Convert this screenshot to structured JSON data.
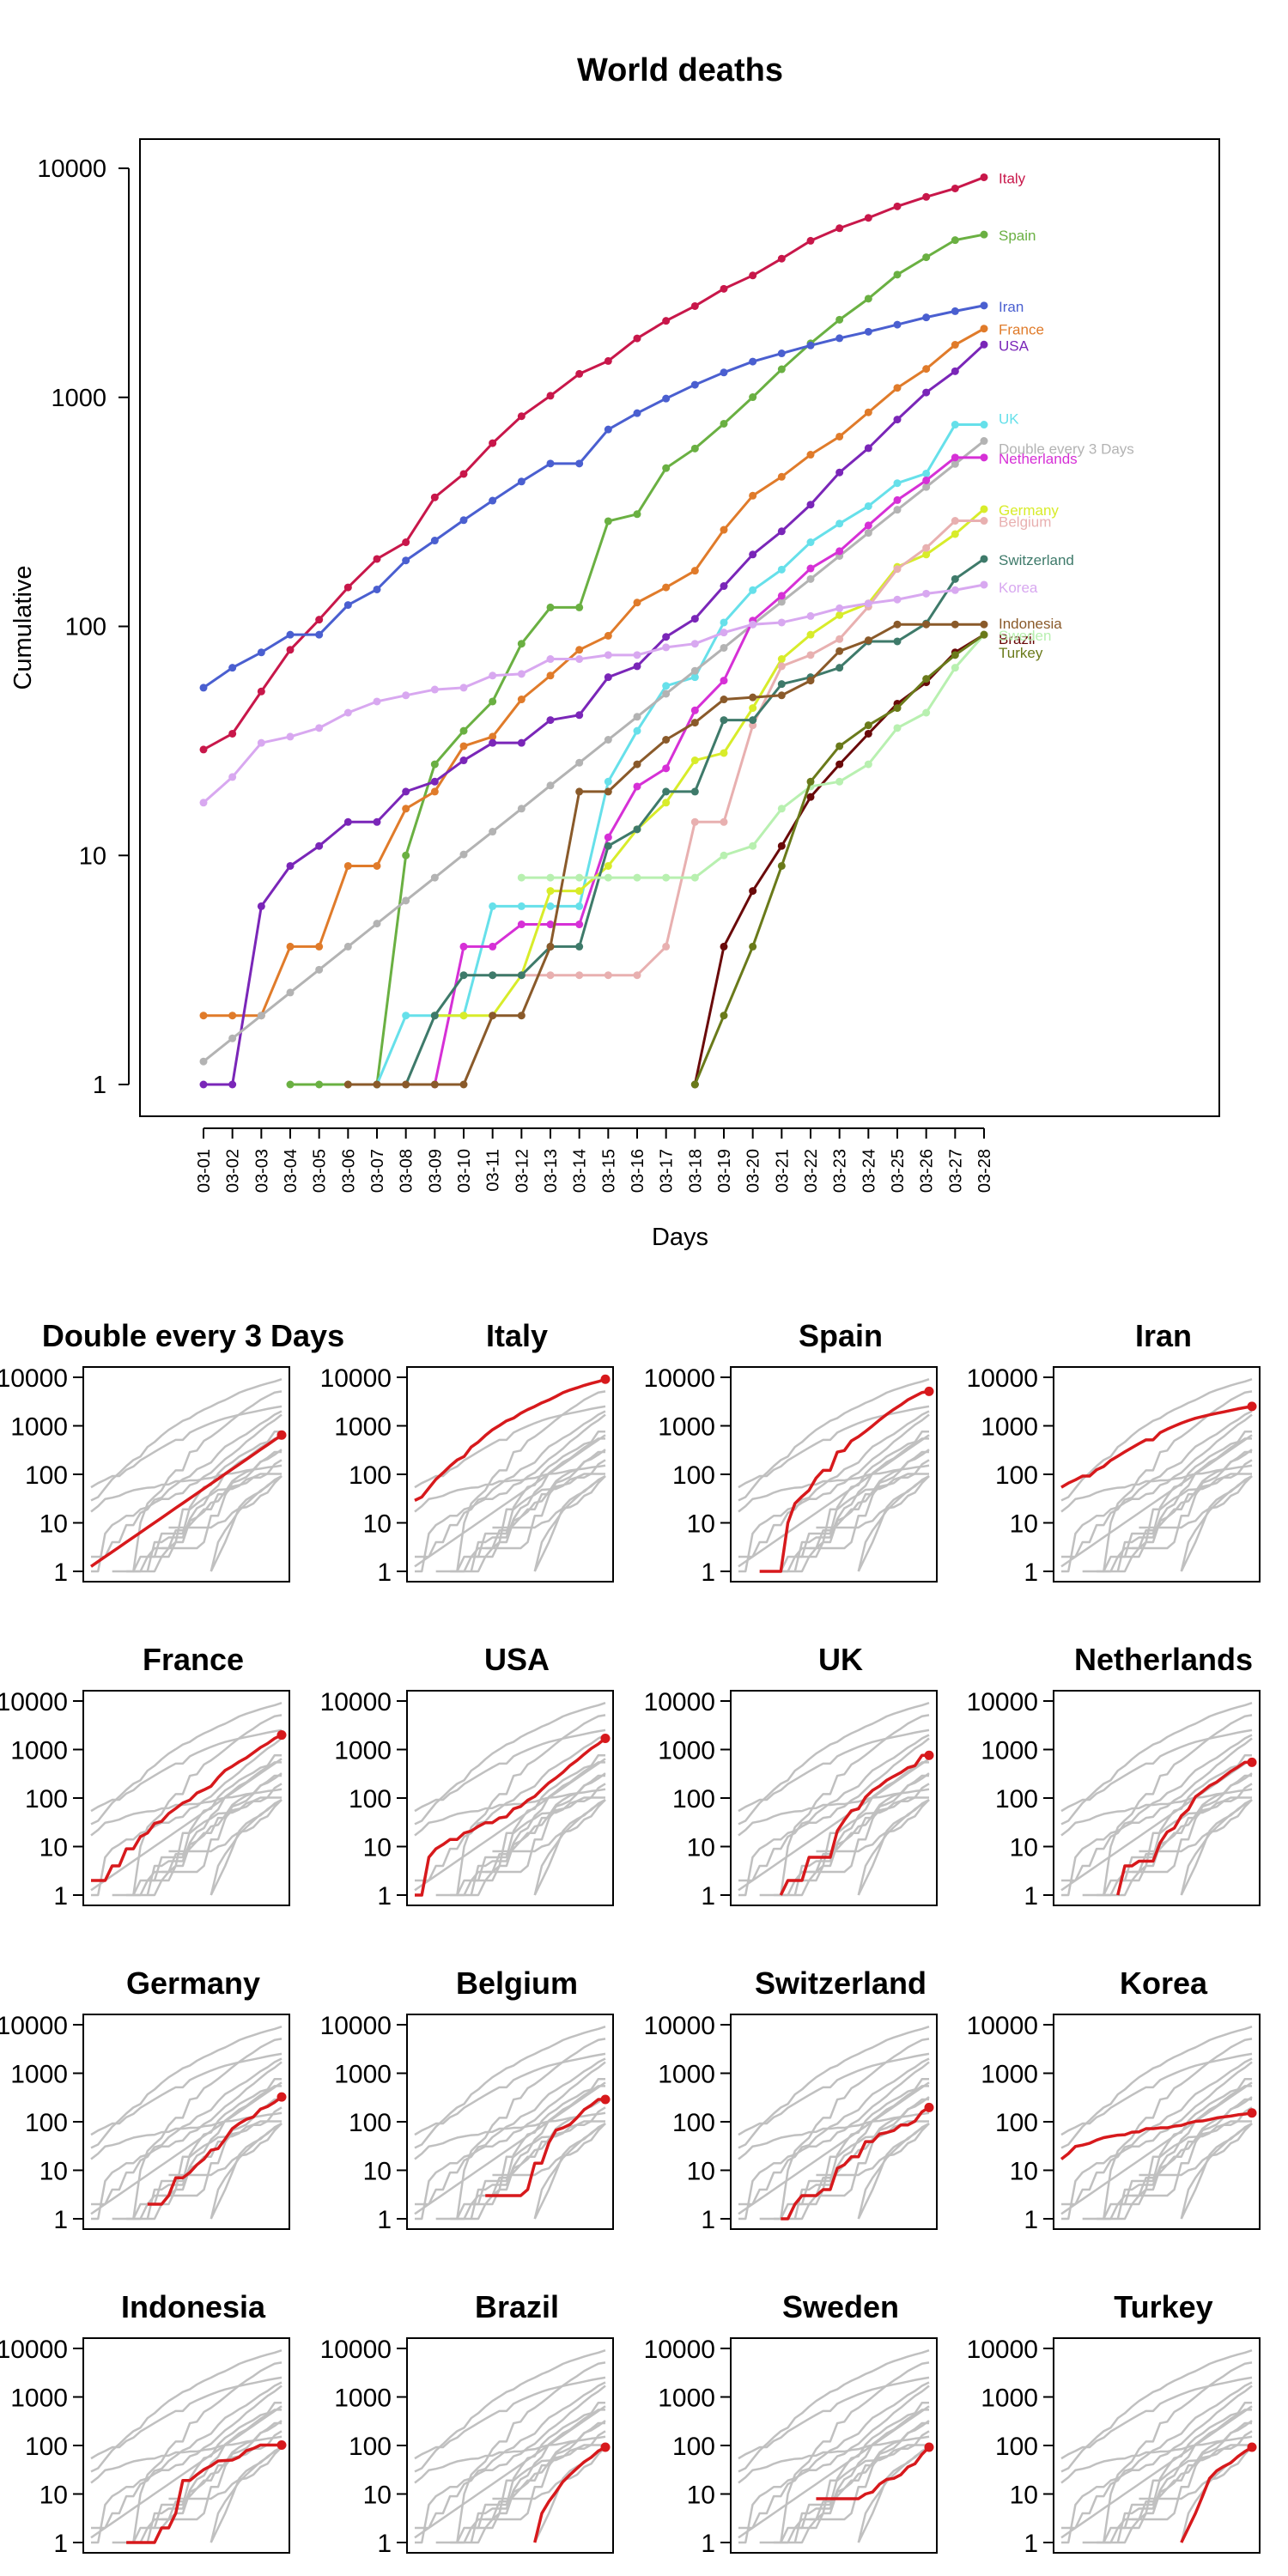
{
  "chart_data": [
    {
      "type": "line",
      "title": "World deaths",
      "xlabel": "Days",
      "ylabel": "Cumulative",
      "scale_y": "log",
      "ylim": [
        1,
        10000
      ],
      "yticks": [
        1,
        10,
        100,
        1000,
        10000
      ],
      "grid": false,
      "legend": "direct labels at line ends",
      "categories": [
        "03-01",
        "03-02",
        "03-03",
        "03-04",
        "03-05",
        "03-06",
        "03-07",
        "03-08",
        "03-09",
        "03-10",
        "03-11",
        "03-12",
        "03-13",
        "03-14",
        "03-15",
        "03-16",
        "03-17",
        "03-18",
        "03-19",
        "03-20",
        "03-21",
        "03-22",
        "03-23",
        "03-24",
        "03-25",
        "03-26",
        "03-27",
        "03-28"
      ],
      "series": [
        {
          "name": "Italy",
          "color": "#c8174a",
          "values": [
            29,
            34,
            52,
            79,
            107,
            148,
            197,
            233,
            366,
            463,
            631,
            827,
            1016,
            1266,
            1441,
            1809,
            2158,
            2503,
            2978,
            3405,
            4032,
            4825,
            5476,
            6077,
            6820,
            7503,
            8165,
            9134
          ]
        },
        {
          "name": "Spain",
          "color": "#6ab042",
          "values": [
            null,
            null,
            null,
            1,
            1,
            1,
            1,
            10,
            25,
            35,
            47,
            84,
            121,
            121,
            288,
            309,
            491,
            598,
            767,
            1002,
            1326,
            1720,
            2182,
            2696,
            3434,
            4089,
            4858,
            5138
          ]
        },
        {
          "name": "Iran",
          "color": "#4a5fd0",
          "values": [
            54,
            66,
            77,
            92,
            92,
            124,
            145,
            194,
            237,
            291,
            354,
            429,
            514,
            514,
            724,
            853,
            988,
            1135,
            1284,
            1433,
            1556,
            1685,
            1812,
            1934,
            2077,
            2234,
            2378,
            2517
          ]
        },
        {
          "name": "France",
          "color": "#e07b2a",
          "values": [
            2,
            2,
            2,
            4,
            4,
            9,
            9,
            16,
            19,
            30,
            33,
            48,
            61,
            79,
            91,
            127,
            148,
            175,
            264,
            372,
            450,
            562,
            674,
            860,
            1100,
            1331,
            1696,
            1995
          ]
        },
        {
          "name": "USA",
          "color": "#7a26b8",
          "values": [
            1,
            1,
            6,
            9,
            11,
            14,
            14,
            19,
            21,
            26,
            31,
            31,
            39,
            41,
            60,
            67,
            90,
            108,
            150,
            206,
            260,
            340,
            470,
            600,
            800,
            1050,
            1300,
            1700
          ]
        },
        {
          "name": "UK",
          "color": "#66e0ea",
          "values": [
            null,
            null,
            null,
            null,
            null,
            null,
            1,
            2,
            2,
            2,
            6,
            6,
            6,
            6,
            21,
            35,
            55,
            60,
            104,
            144,
            177,
            233,
            281,
            335,
            422,
            465,
            760,
            760
          ]
        },
        {
          "name": "Double every 3 Days",
          "color": "#b3b3b3",
          "values": [
            1.26,
            1.59,
            2,
            2.52,
            3.17,
            4,
            5.04,
            6.35,
            8,
            10.1,
            12.7,
            16,
            20.2,
            25.4,
            32,
            40.3,
            50.8,
            64,
            80.6,
            102,
            128,
            161,
            203,
            256,
            323,
            406,
            512,
            645
          ]
        },
        {
          "name": "Netherlands",
          "color": "#d630d6",
          "values": [
            null,
            null,
            null,
            null,
            null,
            null,
            null,
            null,
            1,
            4,
            4,
            5,
            5,
            5,
            12,
            20,
            24,
            43,
            58,
            106,
            136,
            179,
            213,
            276,
            356,
            434,
            546,
            546
          ]
        },
        {
          "name": "Germany",
          "color": "#d8ec2a",
          "values": [
            null,
            null,
            null,
            null,
            null,
            null,
            null,
            null,
            2,
            2,
            2,
            3,
            7,
            7,
            9,
            13,
            17,
            26,
            28,
            44,
            72,
            92,
            112,
            126,
            182,
            206,
            253,
            325
          ]
        },
        {
          "name": "Belgium",
          "color": "#e8b0b0",
          "values": [
            null,
            null,
            null,
            null,
            null,
            null,
            null,
            null,
            null,
            null,
            3,
            3,
            3,
            3,
            3,
            3,
            4,
            14,
            14,
            37,
            67,
            75,
            88,
            122,
            178,
            220,
            289,
            289
          ]
        },
        {
          "name": "Switzerland",
          "color": "#3e7a6a",
          "values": [
            null,
            null,
            null,
            null,
            null,
            null,
            1,
            1,
            2,
            3,
            3,
            3,
            4,
            4,
            11,
            13,
            19,
            19,
            39,
            39,
            56,
            60,
            66,
            86,
            86,
            103,
            161,
            197
          ]
        },
        {
          "name": "Korea",
          "color": "#d8a8f0",
          "values": [
            17,
            22,
            31,
            33,
            36,
            42,
            47,
            50,
            53,
            54,
            61,
            62,
            72,
            72,
            75,
            75,
            81,
            84,
            94,
            102,
            104,
            111,
            120,
            126,
            131,
            139,
            144,
            152
          ]
        },
        {
          "name": "Indonesia",
          "color": "#8a5a2a",
          "values": [
            null,
            null,
            null,
            null,
            null,
            1,
            1,
            1,
            1,
            1,
            2,
            2,
            4,
            19,
            19,
            25,
            32,
            38,
            48,
            49,
            50,
            58,
            78,
            87,
            102,
            102,
            102,
            102
          ]
        },
        {
          "name": "Brazil",
          "color": "#6a0a0a",
          "values": [
            null,
            null,
            null,
            null,
            null,
            null,
            null,
            null,
            null,
            null,
            null,
            null,
            null,
            null,
            null,
            null,
            null,
            1,
            4,
            7,
            11,
            18,
            25,
            34,
            46,
            57,
            77,
            92
          ]
        },
        {
          "name": "Sweden",
          "color": "#b8f0b0",
          "values": [
            null,
            null,
            null,
            null,
            null,
            null,
            null,
            null,
            null,
            null,
            null,
            8,
            8,
            8,
            8,
            8,
            8,
            8,
            10,
            11,
            16,
            20,
            21,
            25,
            36,
            42,
            66,
            92
          ]
        },
        {
          "name": "Turkey",
          "color": "#6a7a1a",
          "values": [
            null,
            null,
            null,
            null,
            null,
            null,
            null,
            null,
            null,
            null,
            null,
            null,
            null,
            null,
            null,
            null,
            null,
            1,
            2,
            4,
            9,
            21,
            30,
            37,
            44,
            59,
            75,
            92
          ]
        }
      ]
    },
    {
      "type": "line",
      "layout": "small multiples, 4x4 grid",
      "scale_y": "log",
      "yticks": [
        1,
        10,
        100,
        1000,
        10000
      ],
      "highlight_color": "#d7191c",
      "background_color": "#c0c0c0",
      "panels": [
        "Double every 3 Days",
        "Italy",
        "Spain",
        "Iran",
        "France",
        "USA",
        "UK",
        "Netherlands",
        "Germany",
        "Belgium",
        "Switzerland",
        "Korea",
        "Indonesia",
        "Brazil",
        "Sweden",
        "Turkey"
      ]
    }
  ]
}
